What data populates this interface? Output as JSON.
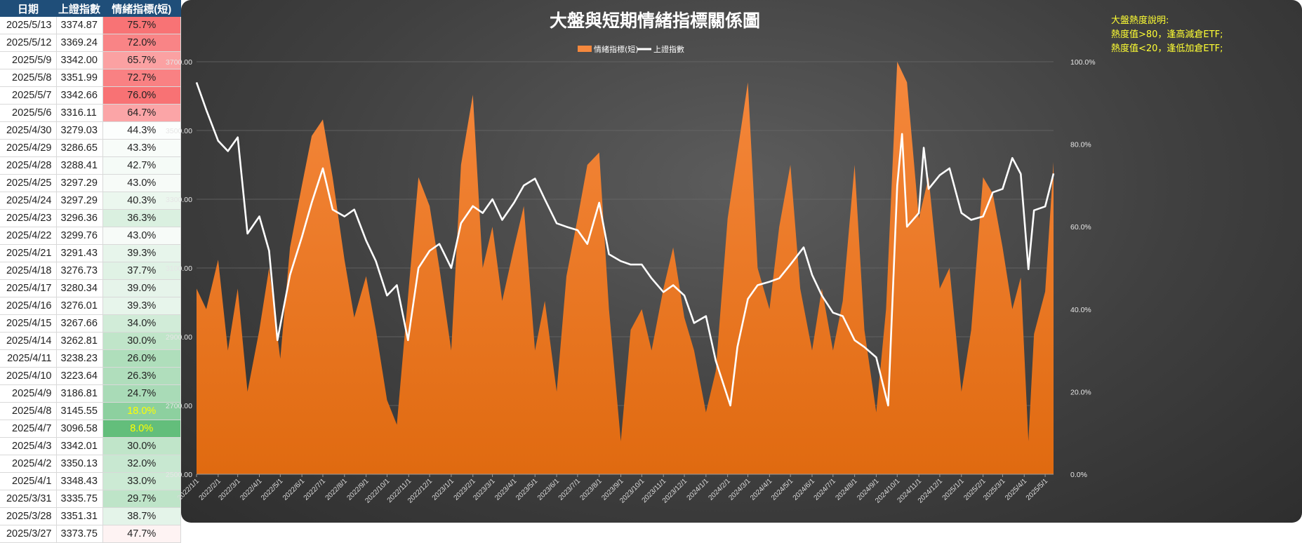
{
  "table": {
    "headers": [
      "日期",
      "上證指數",
      "情緒指標(短)"
    ],
    "rows": [
      {
        "date": "2025/5/13",
        "index": "3374.87",
        "sentiment": "75.7%",
        "value": 75.7
      },
      {
        "date": "2025/5/12",
        "index": "3369.24",
        "sentiment": "72.0%",
        "value": 72.0
      },
      {
        "date": "2025/5/9",
        "index": "3342.00",
        "sentiment": "65.7%",
        "value": 65.7
      },
      {
        "date": "2025/5/8",
        "index": "3351.99",
        "sentiment": "72.7%",
        "value": 72.7
      },
      {
        "date": "2025/5/7",
        "index": "3342.66",
        "sentiment": "76.0%",
        "value": 76.0
      },
      {
        "date": "2025/5/6",
        "index": "3316.11",
        "sentiment": "64.7%",
        "value": 64.7
      },
      {
        "date": "2025/4/30",
        "index": "3279.03",
        "sentiment": "44.3%",
        "value": 44.3
      },
      {
        "date": "2025/4/29",
        "index": "3286.65",
        "sentiment": "43.3%",
        "value": 43.3
      },
      {
        "date": "2025/4/28",
        "index": "3288.41",
        "sentiment": "42.7%",
        "value": 42.7
      },
      {
        "date": "2025/4/25",
        "index": "3297.29",
        "sentiment": "43.0%",
        "value": 43.0
      },
      {
        "date": "2025/4/24",
        "index": "3297.29",
        "sentiment": "40.3%",
        "value": 40.3
      },
      {
        "date": "2025/4/23",
        "index": "3296.36",
        "sentiment": "36.3%",
        "value": 36.3
      },
      {
        "date": "2025/4/22",
        "index": "3299.76",
        "sentiment": "43.0%",
        "value": 43.0
      },
      {
        "date": "2025/4/21",
        "index": "3291.43",
        "sentiment": "39.3%",
        "value": 39.3
      },
      {
        "date": "2025/4/18",
        "index": "3276.73",
        "sentiment": "37.7%",
        "value": 37.7
      },
      {
        "date": "2025/4/17",
        "index": "3280.34",
        "sentiment": "39.0%",
        "value": 39.0
      },
      {
        "date": "2025/4/16",
        "index": "3276.01",
        "sentiment": "39.3%",
        "value": 39.3
      },
      {
        "date": "2025/4/15",
        "index": "3267.66",
        "sentiment": "34.0%",
        "value": 34.0
      },
      {
        "date": "2025/4/14",
        "index": "3262.81",
        "sentiment": "30.0%",
        "value": 30.0
      },
      {
        "date": "2025/4/11",
        "index": "3238.23",
        "sentiment": "26.0%",
        "value": 26.0
      },
      {
        "date": "2025/4/10",
        "index": "3223.64",
        "sentiment": "26.3%",
        "value": 26.3
      },
      {
        "date": "2025/4/9",
        "index": "3186.81",
        "sentiment": "24.7%",
        "value": 24.7
      },
      {
        "date": "2025/4/8",
        "index": "3145.55",
        "sentiment": "18.0%",
        "value": 18.0
      },
      {
        "date": "2025/4/7",
        "index": "3096.58",
        "sentiment": "8.0%",
        "value": 8.0
      },
      {
        "date": "2025/4/3",
        "index": "3342.01",
        "sentiment": "30.0%",
        "value": 30.0
      },
      {
        "date": "2025/4/2",
        "index": "3350.13",
        "sentiment": "32.0%",
        "value": 32.0
      },
      {
        "date": "2025/4/1",
        "index": "3348.43",
        "sentiment": "33.0%",
        "value": 33.0
      },
      {
        "date": "2025/3/31",
        "index": "3335.75",
        "sentiment": "29.7%",
        "value": 29.7
      },
      {
        "date": "2025/3/28",
        "index": "3351.31",
        "sentiment": "38.7%",
        "value": 38.7
      },
      {
        "date": "2025/3/27",
        "index": "3373.75",
        "sentiment": "47.7%",
        "value": 47.7
      }
    ]
  },
  "annotation": {
    "lines": [
      "大盤熱度說明:",
      "熱度值>80，逢高減倉ETF;",
      "熱度值<20，逢低加倉ETF;"
    ]
  },
  "colors": {
    "area_top": "#f5883d",
    "area_bottom": "#e06a10",
    "line": "#ffffff",
    "header_bg": "#1f4e79",
    "hot": "#f8696b",
    "cold": "#63be7b",
    "annotation": "#ffff33"
  },
  "chart_data": {
    "type": "area",
    "title": "大盤與短期情緒指標關係圖",
    "legend": [
      "情緒指標(短)",
      "上證指數"
    ],
    "legend_position": "top-center",
    "grid": true,
    "y_left": {
      "range": [
        2500,
        3700
      ],
      "ticks": [
        "2500.00",
        "2700.00",
        "2900.00",
        "3100.00",
        "3300.00",
        "3500.00",
        "3700.00"
      ]
    },
    "y_right": {
      "range": [
        0,
        100
      ],
      "ticks": [
        "0.0%",
        "20.0%",
        "40.0%",
        "60.0%",
        "80.0%",
        "100.0%"
      ]
    },
    "x_ticks": [
      "2022/1/1",
      "2022/2/1",
      "2022/3/1",
      "2022/4/1",
      "2022/5/1",
      "2022/6/1",
      "2022/7/1",
      "2022/8/1",
      "2022/9/1",
      "2022/10/1",
      "2022/11/1",
      "2022/12/1",
      "2023/1/1",
      "2023/2/1",
      "2023/3/1",
      "2023/4/1",
      "2023/5/1",
      "2023/6/1",
      "2023/7/1",
      "2023/8/1",
      "2023/9/1",
      "2023/10/1",
      "2023/11/1",
      "2023/12/1",
      "2024/1/1",
      "2024/2/1",
      "2024/3/1",
      "2024/4/1",
      "2024/5/1",
      "2024/6/1",
      "2024/7/1",
      "2024/8/1",
      "2024/9/1",
      "2024/10/1",
      "2024/11/1",
      "2024/12/1",
      "2025/1/1",
      "2025/2/1",
      "2025/3/1",
      "2025/4/1",
      "2025/5/1"
    ],
    "series": [
      {
        "name": "情緒指標(短)",
        "axis": "right",
        "points": [
          [
            "2022/1/1",
            45
          ],
          [
            "2022/1/15",
            40
          ],
          [
            "2022/2/1",
            52
          ],
          [
            "2022/2/15",
            30
          ],
          [
            "2022/3/1",
            45
          ],
          [
            "2022/3/15",
            20
          ],
          [
            "2022/4/1",
            35
          ],
          [
            "2022/4/15",
            50
          ],
          [
            "2022/5/1",
            28
          ],
          [
            "2022/5/15",
            55
          ],
          [
            "2022/6/1",
            70
          ],
          [
            "2022/6/15",
            82
          ],
          [
            "2022/7/1",
            86
          ],
          [
            "2022/7/15",
            72
          ],
          [
            "2022/8/1",
            52
          ],
          [
            "2022/8/15",
            38
          ],
          [
            "2022/9/1",
            48
          ],
          [
            "2022/9/15",
            35
          ],
          [
            "2022/10/1",
            18
          ],
          [
            "2022/10/15",
            12
          ],
          [
            "2022/11/1",
            45
          ],
          [
            "2022/11/15",
            72
          ],
          [
            "2022/12/1",
            65
          ],
          [
            "2022/12/15",
            50
          ],
          [
            "2023/1/1",
            30
          ],
          [
            "2023/1/15",
            75
          ],
          [
            "2023/2/1",
            92
          ],
          [
            "2023/2/15",
            50
          ],
          [
            "2023/3/1",
            60
          ],
          [
            "2023/3/15",
            42
          ],
          [
            "2023/4/1",
            55
          ],
          [
            "2023/4/15",
            65
          ],
          [
            "2023/5/1",
            30
          ],
          [
            "2023/5/15",
            42
          ],
          [
            "2023/6/1",
            20
          ],
          [
            "2023/6/15",
            48
          ],
          [
            "2023/7/1",
            62
          ],
          [
            "2023/7/15",
            75
          ],
          [
            "2023/8/1",
            78
          ],
          [
            "2023/8/15",
            40
          ],
          [
            "2023/9/1",
            8
          ],
          [
            "2023/9/15",
            35
          ],
          [
            "2023/10/1",
            40
          ],
          [
            "2023/10/15",
            30
          ],
          [
            "2023/11/1",
            45
          ],
          [
            "2023/11/15",
            55
          ],
          [
            "2023/12/1",
            38
          ],
          [
            "2023/12/15",
            30
          ],
          [
            "2024/1/1",
            15
          ],
          [
            "2024/1/15",
            25
          ],
          [
            "2024/2/1",
            62
          ],
          [
            "2024/2/15",
            78
          ],
          [
            "2024/3/1",
            95
          ],
          [
            "2024/3/15",
            50
          ],
          [
            "2024/4/1",
            40
          ],
          [
            "2024/4/15",
            60
          ],
          [
            "2024/5/1",
            75
          ],
          [
            "2024/5/15",
            45
          ],
          [
            "2024/6/1",
            30
          ],
          [
            "2024/6/15",
            45
          ],
          [
            "2024/7/1",
            30
          ],
          [
            "2024/7/15",
            42
          ],
          [
            "2024/8/1",
            75
          ],
          [
            "2024/8/15",
            35
          ],
          [
            "2024/9/1",
            15
          ],
          [
            "2024/9/15",
            40
          ],
          [
            "2024/10/1",
            100
          ],
          [
            "2024/10/15",
            95
          ],
          [
            "2024/11/1",
            62
          ],
          [
            "2024/11/15",
            72
          ],
          [
            "2024/12/1",
            45
          ],
          [
            "2024/12/15",
            50
          ],
          [
            "2025/1/1",
            20
          ],
          [
            "2025/1/15",
            35
          ],
          [
            "2025/2/1",
            72
          ],
          [
            "2025/2/15",
            68
          ],
          [
            "2025/3/1",
            55
          ],
          [
            "2025/3/15",
            40
          ],
          [
            "2025/3/27",
            47.7
          ],
          [
            "2025/4/7",
            8
          ],
          [
            "2025/4/15",
            34
          ],
          [
            "2025/5/1",
            44.3
          ],
          [
            "2025/5/13",
            75.7
          ]
        ]
      },
      {
        "name": "上證指數",
        "axis": "left",
        "points": [
          [
            "2022/1/1",
            3640
          ],
          [
            "2022/1/15",
            3560
          ],
          [
            "2022/2/1",
            3470
          ],
          [
            "2022/2/15",
            3440
          ],
          [
            "2022/3/1",
            3480
          ],
          [
            "2022/3/15",
            3200
          ],
          [
            "2022/4/1",
            3250
          ],
          [
            "2022/4/15",
            3150
          ],
          [
            "2022/4/27",
            2890
          ],
          [
            "2022/5/15",
            3080
          ],
          [
            "2022/6/1",
            3190
          ],
          [
            "2022/6/15",
            3290
          ],
          [
            "2022/7/1",
            3390
          ],
          [
            "2022/7/15",
            3270
          ],
          [
            "2022/8/1",
            3250
          ],
          [
            "2022/8/15",
            3270
          ],
          [
            "2022/9/1",
            3180
          ],
          [
            "2022/9/15",
            3120
          ],
          [
            "2022/10/1",
            3020
          ],
          [
            "2022/10/15",
            3050
          ],
          [
            "2022/10/31",
            2890
          ],
          [
            "2022/11/15",
            3100
          ],
          [
            "2022/12/1",
            3150
          ],
          [
            "2022/12/15",
            3170
          ],
          [
            "2023/1/1",
            3100
          ],
          [
            "2023/1/15",
            3230
          ],
          [
            "2023/2/1",
            3280
          ],
          [
            "2023/2/15",
            3260
          ],
          [
            "2023/3/1",
            3300
          ],
          [
            "2023/3/15",
            3240
          ],
          [
            "2023/4/1",
            3290
          ],
          [
            "2023/4/15",
            3340
          ],
          [
            "2023/5/1",
            3360
          ],
          [
            "2023/5/15",
            3300
          ],
          [
            "2023/6/1",
            3230
          ],
          [
            "2023/6/15",
            3220
          ],
          [
            "2023/7/1",
            3210
          ],
          [
            "2023/7/15",
            3170
          ],
          [
            "2023/8/1",
            3290
          ],
          [
            "2023/8/15",
            3140
          ],
          [
            "2023/9/1",
            3120
          ],
          [
            "2023/9/15",
            3110
          ],
          [
            "2023/10/1",
            3110
          ],
          [
            "2023/10/15",
            3070
          ],
          [
            "2023/11/1",
            3030
          ],
          [
            "2023/11/15",
            3050
          ],
          [
            "2023/12/1",
            3020
          ],
          [
            "2023/12/15",
            2940
          ],
          [
            "2024/1/1",
            2960
          ],
          [
            "2024/1/15",
            2830
          ],
          [
            "2024/2/5",
            2700
          ],
          [
            "2024/2/15",
            2870
          ],
          [
            "2024/3/1",
            3010
          ],
          [
            "2024/3/15",
            3050
          ],
          [
            "2024/4/1",
            3060
          ],
          [
            "2024/4/15",
            3070
          ],
          [
            "2024/5/1",
            3110
          ],
          [
            "2024/5/20",
            3160
          ],
          [
            "2024/6/1",
            3080
          ],
          [
            "2024/6/15",
            3020
          ],
          [
            "2024/7/1",
            2970
          ],
          [
            "2024/7/15",
            2960
          ],
          [
            "2024/8/1",
            2890
          ],
          [
            "2024/8/15",
            2870
          ],
          [
            "2024/9/1",
            2840
          ],
          [
            "2024/9/18",
            2700
          ],
          [
            "2024/10/1",
            3340
          ],
          [
            "2024/10/8",
            3490
          ],
          [
            "2024/10/15",
            3220
          ],
          [
            "2024/11/1",
            3260
          ],
          [
            "2024/11/8",
            3450
          ],
          [
            "2024/11/15",
            3330
          ],
          [
            "2024/12/1",
            3370
          ],
          [
            "2024/12/15",
            3390
          ],
          [
            "2025/1/1",
            3260
          ],
          [
            "2025/1/15",
            3240
          ],
          [
            "2025/2/1",
            3250
          ],
          [
            "2025/2/15",
            3320
          ],
          [
            "2025/3/1",
            3330
          ],
          [
            "2025/3/15",
            3420
          ],
          [
            "2025/3/27",
            3373.75
          ],
          [
            "2025/4/7",
            3096.58
          ],
          [
            "2025/4/15",
            3267.66
          ],
          [
            "2025/5/1",
            3279.03
          ],
          [
            "2025/5/13",
            3374.87
          ]
        ]
      }
    ]
  }
}
